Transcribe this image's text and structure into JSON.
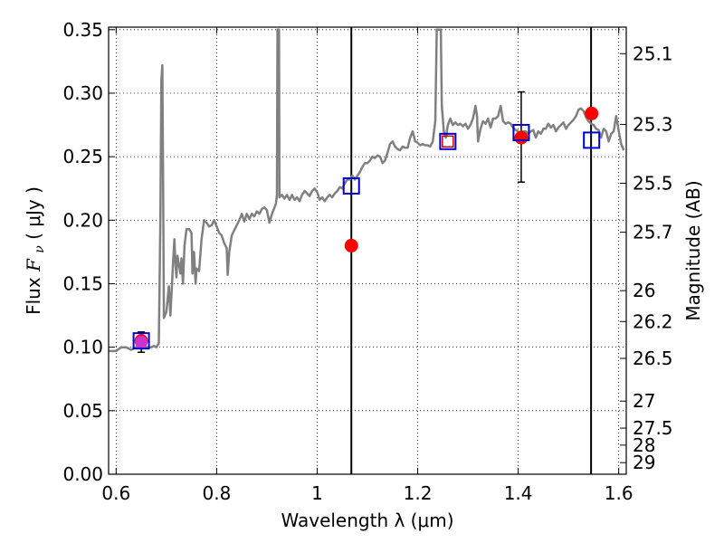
{
  "chart_data": {
    "type": "scatter",
    "xlabel": "Wavelength  λ (μm)",
    "ylabel_prefix": "Flux ",
    "ylabel_symbol": "F",
    "ylabel_subscript": "ν",
    "ylabel_units": " ( μJy )",
    "y2label": "Magnitude (AB)",
    "xlim": [
      0.585,
      1.615
    ],
    "ylim": [
      0.0,
      0.352
    ],
    "grid": true,
    "x_ticks": [
      0.6,
      0.8,
      1.0,
      1.2,
      1.4,
      1.6
    ],
    "x_tick_labels": [
      "0.6",
      "0.8",
      "1",
      "1.2",
      "1.4",
      "1.6"
    ],
    "y_ticks": [
      0.0,
      0.05,
      0.1,
      0.15,
      0.2,
      0.25,
      0.3,
      0.35
    ],
    "y_tick_labels": [
      "0.00",
      "0.05",
      "0.10",
      "0.15",
      "0.20",
      "0.25",
      "0.30",
      "0.35"
    ],
    "mag_ticks": [
      25.1,
      25.3,
      25.5,
      25.7,
      26,
      26.2,
      26.5,
      27,
      27.5,
      28,
      29
    ],
    "mag_tick_labels": [
      "25.1",
      "25.3",
      "25.5",
      "25.7",
      "26",
      "26.2",
      "26.5",
      "27",
      "27.5",
      "28",
      "29"
    ],
    "mag_zero_point": 23.9,
    "vertical_lines_x": [
      1.068,
      1.545
    ],
    "model_spectrum": {
      "color": "#808080",
      "points": [
        [
          0.585,
          0.097
        ],
        [
          0.6,
          0.097
        ],
        [
          0.61,
          0.1
        ],
        [
          0.62,
          0.1
        ],
        [
          0.63,
          0.098
        ],
        [
          0.64,
          0.1
        ],
        [
          0.645,
          0.103
        ],
        [
          0.65,
          0.105
        ],
        [
          0.655,
          0.104
        ],
        [
          0.66,
          0.1
        ],
        [
          0.67,
          0.1
        ],
        [
          0.675,
          0.101
        ],
        [
          0.68,
          0.1
        ],
        [
          0.685,
          0.103
        ],
        [
          0.688,
          0.2
        ],
        [
          0.69,
          0.31
        ],
        [
          0.692,
          0.322
        ],
        [
          0.694,
          0.2
        ],
        [
          0.695,
          0.123
        ],
        [
          0.7,
          0.128
        ],
        [
          0.703,
          0.14
        ],
        [
          0.705,
          0.148
        ],
        [
          0.708,
          0.125
        ],
        [
          0.71,
          0.14
        ],
        [
          0.713,
          0.165
        ],
        [
          0.716,
          0.185
        ],
        [
          0.718,
          0.165
        ],
        [
          0.72,
          0.155
        ],
        [
          0.722,
          0.172
        ],
        [
          0.725,
          0.165
        ],
        [
          0.728,
          0.158
        ],
        [
          0.73,
          0.17
        ],
        [
          0.733,
          0.15
        ],
        [
          0.736,
          0.18
        ],
        [
          0.74,
          0.193
        ],
        [
          0.745,
          0.193
        ],
        [
          0.75,
          0.19
        ],
        [
          0.752,
          0.158
        ],
        [
          0.755,
          0.175
        ],
        [
          0.758,
          0.15
        ],
        [
          0.76,
          0.162
        ],
        [
          0.765,
          0.16
        ],
        [
          0.77,
          0.185
        ],
        [
          0.775,
          0.2
        ],
        [
          0.78,
          0.198
        ],
        [
          0.785,
          0.195
        ],
        [
          0.79,
          0.196
        ],
        [
          0.795,
          0.2
        ],
        [
          0.8,
          0.195
        ],
        [
          0.805,
          0.19
        ],
        [
          0.81,
          0.188
        ],
        [
          0.815,
          0.182
        ],
        [
          0.82,
          0.178
        ],
        [
          0.822,
          0.157
        ],
        [
          0.825,
          0.175
        ],
        [
          0.83,
          0.188
        ],
        [
          0.835,
          0.192
        ],
        [
          0.84,
          0.196
        ],
        [
          0.845,
          0.2
        ],
        [
          0.85,
          0.205
        ],
        [
          0.855,
          0.199
        ],
        [
          0.86,
          0.205
        ],
        [
          0.865,
          0.201
        ],
        [
          0.87,
          0.205
        ],
        [
          0.875,
          0.203
        ],
        [
          0.88,
          0.207
        ],
        [
          0.885,
          0.205
        ],
        [
          0.89,
          0.209
        ],
        [
          0.895,
          0.21
        ],
        [
          0.9,
          0.208
        ],
        [
          0.905,
          0.198
        ],
        [
          0.91,
          0.205
        ],
        [
          0.915,
          0.21
        ],
        [
          0.918,
          0.213
        ],
        [
          0.92,
          0.22
        ],
        [
          0.921,
          0.35
        ],
        [
          0.924,
          0.35
        ],
        [
          0.925,
          0.218
        ],
        [
          0.93,
          0.22
        ],
        [
          0.935,
          0.217
        ],
        [
          0.94,
          0.22
        ],
        [
          0.945,
          0.216
        ],
        [
          0.95,
          0.22
        ],
        [
          0.955,
          0.216
        ],
        [
          0.96,
          0.218
        ],
        [
          0.965,
          0.215
        ],
        [
          0.97,
          0.22
        ],
        [
          0.975,
          0.223
        ],
        [
          0.98,
          0.221
        ],
        [
          0.985,
          0.219
        ],
        [
          0.99,
          0.223
        ],
        [
          0.995,
          0.225
        ],
        [
          1.0,
          0.222
        ],
        [
          1.005,
          0.216
        ],
        [
          1.01,
          0.218
        ],
        [
          1.015,
          0.215
        ],
        [
          1.02,
          0.218
        ],
        [
          1.025,
          0.22
        ],
        [
          1.03,
          0.218
        ],
        [
          1.035,
          0.221
        ],
        [
          1.04,
          0.223
        ],
        [
          1.045,
          0.226
        ],
        [
          1.05,
          0.225
        ],
        [
          1.055,
          0.229
        ],
        [
          1.06,
          0.232
        ],
        [
          1.065,
          0.232
        ],
        [
          1.07,
          0.235
        ],
        [
          1.075,
          0.232
        ],
        [
          1.08,
          0.235
        ],
        [
          1.085,
          0.238
        ],
        [
          1.09,
          0.242
        ],
        [
          1.095,
          0.245
        ],
        [
          1.1,
          0.245
        ],
        [
          1.105,
          0.247
        ],
        [
          1.11,
          0.25
        ],
        [
          1.115,
          0.249
        ],
        [
          1.12,
          0.251
        ],
        [
          1.125,
          0.25
        ],
        [
          1.13,
          0.245
        ],
        [
          1.135,
          0.247
        ],
        [
          1.14,
          0.253
        ],
        [
          1.145,
          0.26
        ],
        [
          1.15,
          0.262
        ],
        [
          1.155,
          0.258
        ],
        [
          1.16,
          0.256
        ],
        [
          1.165,
          0.255
        ],
        [
          1.17,
          0.258
        ],
        [
          1.175,
          0.257
        ],
        [
          1.18,
          0.257
        ],
        [
          1.185,
          0.265
        ],
        [
          1.19,
          0.27
        ],
        [
          1.195,
          0.262
        ],
        [
          1.2,
          0.261
        ],
        [
          1.205,
          0.259
        ],
        [
          1.21,
          0.26
        ],
        [
          1.215,
          0.259
        ],
        [
          1.22,
          0.259
        ],
        [
          1.225,
          0.258
        ],
        [
          1.23,
          0.262
        ],
        [
          1.235,
          0.278
        ],
        [
          1.238,
          0.35
        ],
        [
          1.242,
          0.35
        ],
        [
          1.246,
          0.35
        ],
        [
          1.248,
          0.29
        ],
        [
          1.252,
          0.27
        ],
        [
          1.256,
          0.265
        ],
        [
          1.26,
          0.275
        ],
        [
          1.265,
          0.28
        ],
        [
          1.27,
          0.275
        ],
        [
          1.275,
          0.277
        ],
        [
          1.28,
          0.275
        ],
        [
          1.285,
          0.276
        ],
        [
          1.29,
          0.274
        ],
        [
          1.295,
          0.276
        ],
        [
          1.3,
          0.272
        ],
        [
          1.305,
          0.275
        ],
        [
          1.31,
          0.28
        ],
        [
          1.315,
          0.29
        ],
        [
          1.318,
          0.282
        ],
        [
          1.32,
          0.262
        ],
        [
          1.325,
          0.272
        ],
        [
          1.33,
          0.278
        ],
        [
          1.335,
          0.276
        ],
        [
          1.34,
          0.28
        ],
        [
          1.345,
          0.273
        ],
        [
          1.35,
          0.28
        ],
        [
          1.355,
          0.28
        ],
        [
          1.36,
          0.282
        ],
        [
          1.365,
          0.29
        ],
        [
          1.37,
          0.278
        ],
        [
          1.375,
          0.276
        ],
        [
          1.38,
          0.277
        ],
        [
          1.385,
          0.276
        ],
        [
          1.39,
          0.273
        ],
        [
          1.395,
          0.271
        ],
        [
          1.4,
          0.27
        ],
        [
          1.405,
          0.268
        ],
        [
          1.41,
          0.27
        ],
        [
          1.415,
          0.27
        ],
        [
          1.42,
          0.268
        ],
        [
          1.425,
          0.27
        ],
        [
          1.43,
          0.271
        ],
        [
          1.435,
          0.265
        ],
        [
          1.44,
          0.27
        ],
        [
          1.445,
          0.268
        ],
        [
          1.45,
          0.272
        ],
        [
          1.455,
          0.272
        ],
        [
          1.46,
          0.276
        ],
        [
          1.465,
          0.273
        ],
        [
          1.47,
          0.275
        ],
        [
          1.475,
          0.27
        ],
        [
          1.48,
          0.273
        ],
        [
          1.485,
          0.275
        ],
        [
          1.49,
          0.277
        ],
        [
          1.495,
          0.272
        ],
        [
          1.5,
          0.275
        ],
        [
          1.505,
          0.277
        ],
        [
          1.51,
          0.279
        ],
        [
          1.515,
          0.282
        ],
        [
          1.52,
          0.287
        ],
        [
          1.525,
          0.288
        ],
        [
          1.53,
          0.286
        ],
        [
          1.535,
          0.281
        ],
        [
          1.54,
          0.278
        ],
        [
          1.545,
          0.276
        ],
        [
          1.55,
          0.275
        ],
        [
          1.555,
          0.272
        ],
        [
          1.56,
          0.271
        ],
        [
          1.565,
          0.265
        ],
        [
          1.57,
          0.272
        ],
        [
          1.575,
          0.27
        ],
        [
          1.58,
          0.262
        ],
        [
          1.585,
          0.268
        ],
        [
          1.59,
          0.27
        ],
        [
          1.595,
          0.282
        ],
        [
          1.6,
          0.27
        ],
        [
          1.605,
          0.26
        ],
        [
          1.61,
          0.255
        ]
      ]
    },
    "observed_points": {
      "color": "#ff0000",
      "x": [
        0.65,
        1.068,
        1.406,
        1.546
      ],
      "y": [
        0.105,
        0.18,
        0.265,
        0.284
      ]
    },
    "model_bandpass_points": {
      "color": "#0000cc",
      "x": [
        0.65,
        1.068,
        1.26,
        1.406,
        1.546
      ],
      "y": [
        0.105,
        0.227,
        0.262,
        0.269,
        0.263
      ]
    },
    "small_red_square": {
      "color": "#cc0000",
      "x": 1.26,
      "y": 0.262
    },
    "magenta_marker": {
      "color": "#cc33cc",
      "x": 0.65,
      "y": 0.104
    },
    "error_bars": [
      {
        "x": 0.65,
        "y_low": 0.096,
        "y_high": 0.112
      },
      {
        "x": 1.406,
        "y_low": 0.23,
        "y_high": 0.301
      }
    ]
  }
}
